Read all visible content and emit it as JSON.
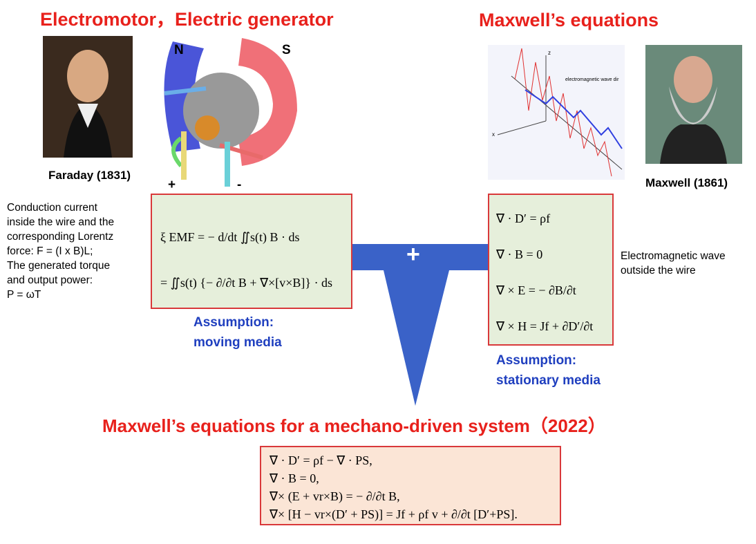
{
  "left": {
    "title": "Electromotor，Electric generator",
    "portrait_caption": "Faraday (1831)",
    "motor_labels": {
      "north": "N",
      "south": "S",
      "plus": "+",
      "minus": "-"
    },
    "description": [
      "Conduction current",
      "inside the wire and the",
      "corresponding Lorentz",
      "force: F = (I x B)L;",
      "The generated torque",
      "and output power:",
      "P = ωT"
    ],
    "equations": [
      "ξ EMF = − d/dt ∬s(t) B · ds",
      "= ∬s(t) {− ∂/∂t B + ∇×[v×B]} · ds"
    ],
    "assumption": [
      "Assumption:",
      "moving media"
    ]
  },
  "right": {
    "title": "Maxwell’s equations",
    "portrait_caption": "Maxwell (1861)",
    "wave_labels": {
      "z": "z",
      "x": "x",
      "direction": "electromagnetic wave dir"
    },
    "description": [
      "Electromagnetic wave",
      "outside the wire"
    ],
    "equations": [
      "∇ · D′ = ρf",
      "∇ · B = 0",
      "∇ × E = − ∂B/∂t",
      "∇ × H = Jf + ∂D′/∂t"
    ],
    "assumption": [
      "Assumption:",
      "stationary media"
    ]
  },
  "connector": {
    "symbol": "+"
  },
  "bottom": {
    "title": "Maxwell’s equations for a mechano-driven system（2022）",
    "equations": [
      "∇ · D′ = ρf − ∇ · PS,",
      "∇ · B = 0,",
      "∇× (E + vr×B) = − ∂/∂t B,",
      "∇× [H − vr×(D′ + PS)] = Jf + ρf v + ∂/∂t [D′+PS]."
    ]
  }
}
